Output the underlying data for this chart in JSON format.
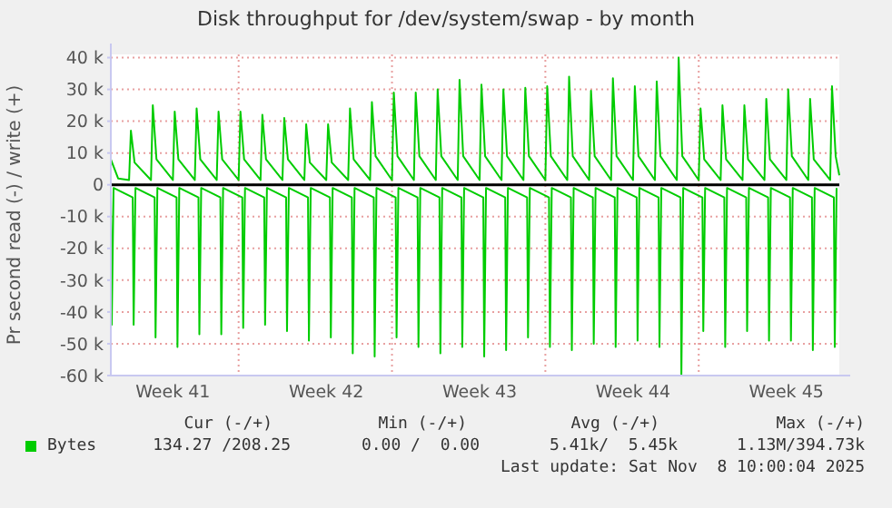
{
  "chart_data": {
    "type": "line",
    "title": "Disk throughput for /dev/system/swap - by month",
    "ylabel": "Pr second read (-) / write (+)",
    "xlim": [
      "2025-10-06T04:00",
      "2025-11-08T10:00"
    ],
    "xticks": [
      {
        "value": "2025-10-09T00:00",
        "label": "Week 41"
      },
      {
        "value": "2025-10-12T00:00",
        "label": null
      },
      {
        "value": "2025-10-16T00:00",
        "label": "Week 42"
      },
      {
        "value": "2025-10-19T00:00",
        "label": null
      },
      {
        "value": "2025-10-23T00:00",
        "label": "Week 43"
      },
      {
        "value": "2025-10-26T00:00",
        "label": null
      },
      {
        "value": "2025-10-30T00:00",
        "label": "Week 44"
      },
      {
        "value": "2025-11-02T00:00",
        "label": null
      },
      {
        "value": "2025-11-06T00:00",
        "label": "Week 45"
      }
    ],
    "ylim": [
      -60,
      41
    ],
    "yticks": [
      {
        "value": -60,
        "label": "-60 k"
      },
      {
        "value": -50,
        "label": "-50 k"
      },
      {
        "value": -40,
        "label": "-40 k"
      },
      {
        "value": -30,
        "label": "-30 k"
      },
      {
        "value": -20,
        "label": "-20 k"
      },
      {
        "value": -10,
        "label": "-10 k"
      },
      {
        "value": 0,
        "label": "0"
      },
      {
        "value": 10,
        "label": "10 k"
      },
      {
        "value": 20,
        "label": "20 k"
      },
      {
        "value": 30,
        "label": "30 k"
      },
      {
        "value": 40,
        "label": "40 k"
      }
    ],
    "grid": true,
    "legend": "bottom left",
    "marker": "none",
    "line_style": "solid",
    "ref_lines": [
      {
        "axis": "y",
        "value": 0,
        "color": "#000000"
      }
    ],
    "series": [
      {
        "name": "Bytes",
        "color": "#00cc00",
        "x": [
          "2025-10-06T04:00",
          "2025-10-06T12:00",
          "2025-10-07T00:00",
          "2025-10-07T02:00",
          "2025-10-07T06:00",
          "2025-10-08T00:00",
          "2025-10-08T02:00",
          "2025-10-08T06:00",
          "2025-10-09T00:00",
          "2025-10-09T02:00",
          "2025-10-09T06:00",
          "2025-10-10T00:00",
          "2025-10-10T02:00",
          "2025-10-10T06:00",
          "2025-10-11T00:00",
          "2025-10-11T02:00",
          "2025-10-11T06:00",
          "2025-10-12T00:00",
          "2025-10-12T02:00",
          "2025-10-12T06:00",
          "2025-10-13T00:00",
          "2025-10-13T02:00",
          "2025-10-13T06:00",
          "2025-10-14T00:00",
          "2025-10-14T02:00",
          "2025-10-14T06:00",
          "2025-10-15T00:00",
          "2025-10-15T02:00",
          "2025-10-15T06:00",
          "2025-10-16T00:00",
          "2025-10-16T02:00",
          "2025-10-16T06:00",
          "2025-10-17T00:00",
          "2025-10-17T02:00",
          "2025-10-17T06:00",
          "2025-10-18T00:00",
          "2025-10-18T02:00",
          "2025-10-18T06:00",
          "2025-10-19T00:00",
          "2025-10-19T02:00",
          "2025-10-19T06:00",
          "2025-10-20T00:00",
          "2025-10-20T02:00",
          "2025-10-20T06:00",
          "2025-10-21T00:00",
          "2025-10-21T02:00",
          "2025-10-21T06:00",
          "2025-10-22T00:00",
          "2025-10-22T02:00",
          "2025-10-22T06:00",
          "2025-10-23T00:00",
          "2025-10-23T02:00",
          "2025-10-23T06:00",
          "2025-10-24T00:00",
          "2025-10-24T02:00",
          "2025-10-24T06:00",
          "2025-10-25T00:00",
          "2025-10-25T02:00",
          "2025-10-25T06:00",
          "2025-10-26T00:00",
          "2025-10-26T02:00",
          "2025-10-26T06:00",
          "2025-10-27T00:00",
          "2025-10-27T02:00",
          "2025-10-27T06:00",
          "2025-10-28T00:00",
          "2025-10-28T02:00",
          "2025-10-28T06:00",
          "2025-10-29T00:00",
          "2025-10-29T02:00",
          "2025-10-29T06:00",
          "2025-10-30T00:00",
          "2025-10-30T02:00",
          "2025-10-30T06:00",
          "2025-10-31T00:00",
          "2025-10-31T02:00",
          "2025-10-31T06:00",
          "2025-11-01T00:00",
          "2025-11-01T02:00",
          "2025-11-01T06:00",
          "2025-11-02T00:00",
          "2025-11-02T02:00",
          "2025-11-02T06:00",
          "2025-11-03T00:00",
          "2025-11-03T02:00",
          "2025-11-03T06:00",
          "2025-11-04T00:00",
          "2025-11-04T02:00",
          "2025-11-04T06:00",
          "2025-11-05T00:00",
          "2025-11-05T02:00",
          "2025-11-05T06:00",
          "2025-11-06T00:00",
          "2025-11-06T02:00",
          "2025-11-06T06:00",
          "2025-11-07T00:00",
          "2025-11-07T02:00",
          "2025-11-07T06:00",
          "2025-11-08T00:00",
          "2025-11-08T02:00",
          "2025-11-08T06:00",
          "2025-11-08T10:00"
        ],
        "values": [
          8,
          2,
          1.5,
          17,
          7,
          1.5,
          25,
          8,
          1.5,
          23,
          8,
          1.5,
          24,
          8,
          1.5,
          23,
          8,
          1.5,
          23,
          8,
          1.5,
          22,
          8,
          1.5,
          21,
          8,
          1.5,
          19,
          7,
          1.5,
          19,
          7,
          1.5,
          24,
          8,
          1.5,
          26,
          9,
          1.5,
          29,
          9,
          1.5,
          29,
          9,
          1.5,
          30,
          9,
          1.5,
          33,
          9,
          1.5,
          31.5,
          9,
          1.5,
          30,
          9,
          1.5,
          30.5,
          9,
          1.5,
          31,
          9,
          1.5,
          34,
          9,
          1.5,
          29.6,
          9,
          1.5,
          33.5,
          9,
          1.5,
          31,
          9,
          1.5,
          32.5,
          9,
          1.5,
          40,
          9,
          1.5,
          24,
          8,
          1.5,
          25,
          8,
          1.5,
          25,
          8,
          1.5,
          27,
          8,
          1.5,
          30,
          9,
          1.5,
          27,
          8,
          1.5,
          31,
          9,
          3
        ]
      },
      {
        "color": "#00cc00",
        "x": [
          "2025-10-06T04:00",
          "2025-10-06T05:00",
          "2025-10-06T07:00",
          "2025-10-07T04:00",
          "2025-10-07T05:00",
          "2025-10-07T07:00",
          "2025-10-08T04:00",
          "2025-10-08T05:00",
          "2025-10-08T07:00",
          "2025-10-09T04:00",
          "2025-10-09T05:00",
          "2025-10-09T07:00",
          "2025-10-10T04:00",
          "2025-10-10T05:00",
          "2025-10-10T07:00",
          "2025-10-11T04:00",
          "2025-10-11T05:00",
          "2025-10-11T07:00",
          "2025-10-12T04:00",
          "2025-10-12T05:00",
          "2025-10-12T07:00",
          "2025-10-13T04:00",
          "2025-10-13T05:00",
          "2025-10-13T07:00",
          "2025-10-14T04:00",
          "2025-10-14T05:00",
          "2025-10-14T07:00",
          "2025-10-15T04:00",
          "2025-10-15T05:00",
          "2025-10-15T07:00",
          "2025-10-16T04:00",
          "2025-10-16T05:00",
          "2025-10-16T07:00",
          "2025-10-17T04:00",
          "2025-10-17T05:00",
          "2025-10-17T07:00",
          "2025-10-18T04:00",
          "2025-10-18T05:00",
          "2025-10-18T07:00",
          "2025-10-19T04:00",
          "2025-10-19T05:00",
          "2025-10-19T07:00",
          "2025-10-20T04:00",
          "2025-10-20T05:00",
          "2025-10-20T07:00",
          "2025-10-21T04:00",
          "2025-10-21T05:00",
          "2025-10-21T07:00",
          "2025-10-22T04:00",
          "2025-10-22T05:00",
          "2025-10-22T07:00",
          "2025-10-23T04:00",
          "2025-10-23T05:00",
          "2025-10-23T07:00",
          "2025-10-24T04:00",
          "2025-10-24T05:00",
          "2025-10-24T07:00",
          "2025-10-25T04:00",
          "2025-10-25T05:00",
          "2025-10-25T07:00",
          "2025-10-26T04:00",
          "2025-10-26T05:00",
          "2025-10-26T07:00",
          "2025-10-27T04:00",
          "2025-10-27T05:00",
          "2025-10-27T07:00",
          "2025-10-28T04:00",
          "2025-10-28T05:00",
          "2025-10-28T07:00",
          "2025-10-29T04:00",
          "2025-10-29T05:00",
          "2025-10-29T07:00",
          "2025-10-30T04:00",
          "2025-10-30T05:00",
          "2025-10-30T07:00",
          "2025-10-31T04:00",
          "2025-10-31T05:00",
          "2025-10-31T07:00",
          "2025-11-01T04:00",
          "2025-11-01T05:00",
          "2025-11-01T07:00",
          "2025-11-02T04:00",
          "2025-11-02T05:00",
          "2025-11-02T07:00",
          "2025-11-03T04:00",
          "2025-11-03T05:00",
          "2025-11-03T07:00",
          "2025-11-04T04:00",
          "2025-11-04T05:00",
          "2025-11-04T07:00",
          "2025-11-05T04:00",
          "2025-11-05T05:00",
          "2025-11-05T07:00",
          "2025-11-06T04:00",
          "2025-11-06T05:00",
          "2025-11-06T07:00",
          "2025-11-07T04:00",
          "2025-11-07T05:00",
          "2025-11-07T07:00",
          "2025-11-08T04:00",
          "2025-11-08T05:00",
          "2025-11-08T07:00"
        ],
        "values": [
          -3,
          -44,
          -1,
          -4,
          -44,
          -1,
          -4,
          -48,
          -1,
          -4,
          -51,
          -1,
          -4,
          -47,
          -1,
          -4,
          -47,
          -1,
          -4,
          -45,
          -1,
          -4,
          -44,
          -1,
          -4,
          -46,
          -1,
          -4,
          -49,
          -1,
          -4,
          -48,
          -1,
          -4,
          -53,
          -1,
          -4,
          -54,
          -1,
          -4,
          -48,
          -1,
          -4,
          -51,
          -1,
          -4,
          -53,
          -1,
          -4,
          -51,
          -1,
          -4,
          -54,
          -1,
          -4,
          -52,
          -1,
          -4,
          -48,
          -1,
          -4,
          -51,
          -1,
          -4,
          -52,
          -1,
          -4,
          -50,
          -1,
          -4,
          -51,
          -1,
          -4,
          -49,
          -1,
          -4,
          -51,
          -1,
          -4,
          -60,
          -1,
          -4,
          -46,
          -1,
          -4,
          -51,
          -1,
          -4,
          -46,
          -1,
          -4,
          -49,
          -1,
          -4,
          -49,
          -1,
          -4,
          -52,
          -1,
          -4,
          -51,
          -1
        ]
      }
    ],
    "annotations": [
      "Cur (-/+)",
      "Min (-/+)",
      "Avg (-/+)",
      "Max (-/+)",
      "134.27 /208.25",
      "0.00 /  0.00",
      "5.41k/  5.45k",
      "1.13M/394.73k",
      "Last update: Sat Nov  8 10:00:04 2025"
    ]
  }
}
